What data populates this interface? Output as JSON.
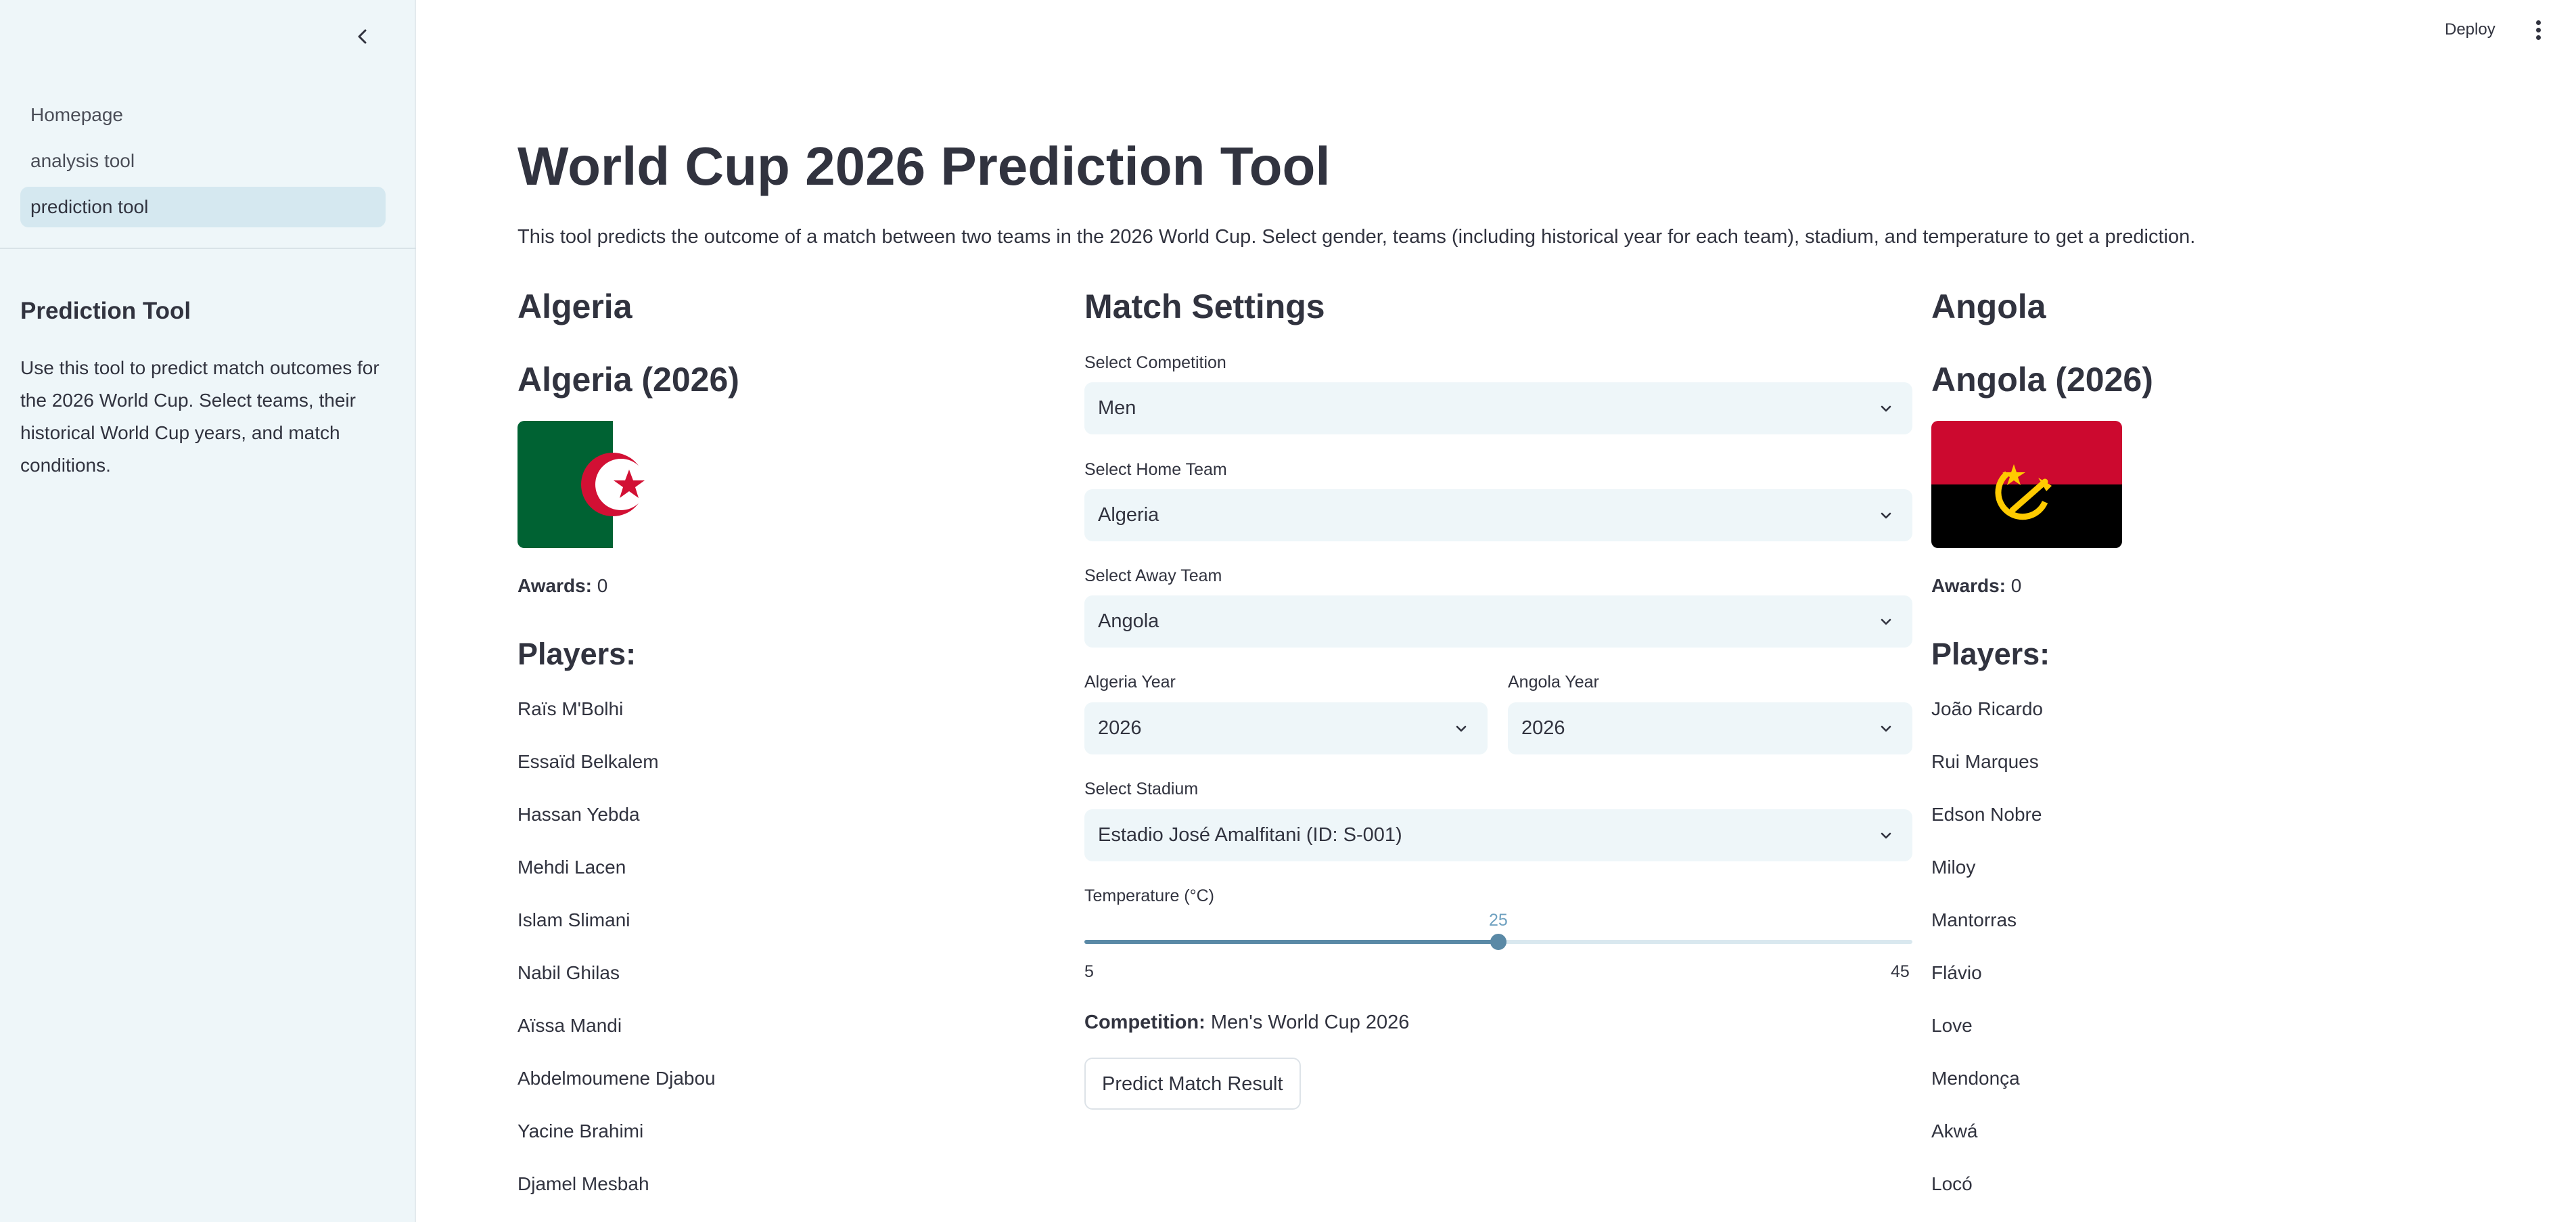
{
  "sidebar": {
    "nav": [
      {
        "label": "Homepage",
        "active": false
      },
      {
        "label": "analysis tool",
        "active": false
      },
      {
        "label": "prediction tool",
        "active": true
      }
    ],
    "title": "Prediction Tool",
    "text": "Use this tool to predict match outcomes for the 2026 World Cup. Select teams, their historical World Cup years, and match conditions."
  },
  "header": {
    "deploy_label": "Deploy"
  },
  "main": {
    "title": "World Cup 2026 Prediction Tool",
    "intro": "This tool predicts the outcome of a match between two teams in the 2026 World Cup. Select gender, teams (including historical year for each team), stadium, and temperature to get a prediction."
  },
  "home": {
    "name": "Algeria",
    "subtitle": "Algeria (2026)",
    "awards_label": "Awards:",
    "awards_value": "0",
    "players_label": "Players:",
    "players": [
      "Raïs M'Bolhi",
      "Essaïd Belkalem",
      "Hassan Yebda",
      "Mehdi Lacen",
      "Islam Slimani",
      "Nabil Ghilas",
      "Aïssa Mandi",
      "Abdelmoumene Djabou",
      "Yacine Brahimi",
      "Djamel Mesbah"
    ]
  },
  "away": {
    "name": "Angola",
    "subtitle": "Angola (2026)",
    "awards_label": "Awards:",
    "awards_value": "0",
    "players_label": "Players:",
    "players": [
      "João Ricardo",
      "Rui Marques",
      "Edson Nobre",
      "Miloy",
      "Mantorras",
      "Flávio",
      "Love",
      "Mendonça",
      "Akwá",
      "Locó"
    ]
  },
  "settings": {
    "heading": "Match Settings",
    "competition_label": "Select Competition",
    "competition_value": "Men",
    "home_label": "Select Home Team",
    "home_value": "Algeria",
    "away_label": "Select Away Team",
    "away_value": "Angola",
    "home_year_label": "Algeria Year",
    "home_year_value": "2026",
    "away_year_label": "Angola Year",
    "away_year_value": "2026",
    "stadium_label": "Select Stadium",
    "stadium_value": "Estadio José Amalfitani (ID: S-001)",
    "temperature_label": "Temperature (°C)",
    "temperature_value": 25,
    "temperature_min": 5,
    "temperature_max": 45,
    "competition_summary_label": "Competition:",
    "competition_summary_value": "Men's World Cup 2026",
    "predict_label": "Predict Match Result"
  },
  "colors": {
    "sidebar_bg": "#eef6f9",
    "accent": "#5a89a6",
    "algeria_green": "#006233",
    "algeria_red": "#d21034",
    "angola_red": "#cc092f",
    "angola_yellow": "#ffcb00"
  },
  "icons": {
    "collapse": "chevron-left-icon",
    "menu": "vertical-dots-icon",
    "select": "chevron-down-icon"
  }
}
